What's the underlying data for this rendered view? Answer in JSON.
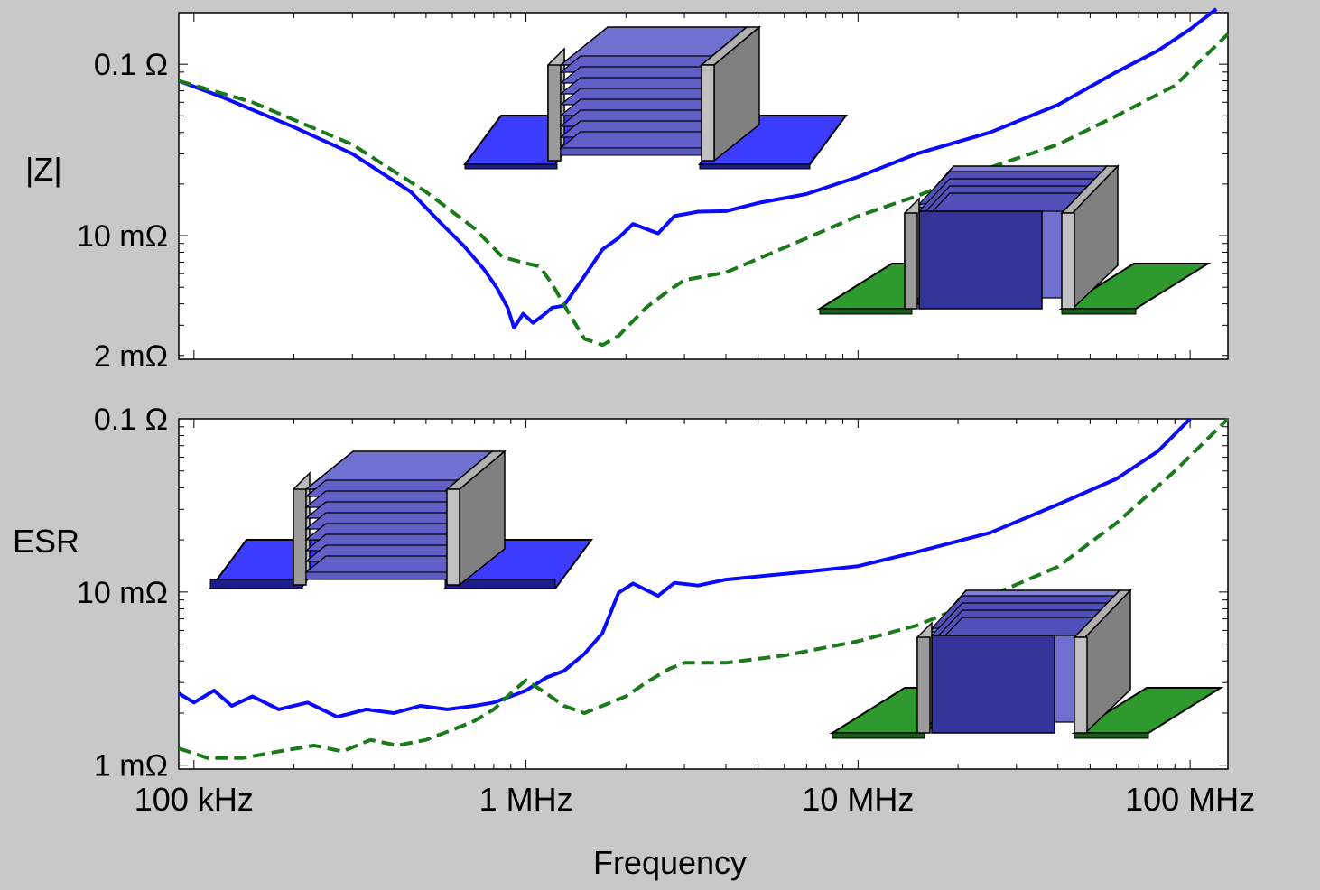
{
  "chart_data": [
    {
      "type": "line",
      "ylabel": "|Z|",
      "x_scale": "log",
      "y_scale": "log",
      "xlim": [
        90000,
        130000000
      ],
      "ylim": [
        0.0019,
        0.2
      ],
      "y_ticks": [
        {
          "value": 0.1,
          "label": "0.1 Ω"
        },
        {
          "value": 0.01,
          "label": "10 mΩ"
        },
        {
          "value": 0.002,
          "label": "2 mΩ"
        }
      ],
      "series": [
        {
          "color": "#0a0aff",
          "dash": "solid",
          "x": [
            90000,
            120000,
            200000,
            300000,
            450000,
            550000,
            650000,
            750000,
            820000,
            880000,
            920000,
            980000,
            1050000,
            1120000,
            1200000,
            1300000,
            1500000,
            1700000,
            1900000,
            2100000,
            2500000,
            2800000,
            3300000,
            4000000,
            5000000,
            7000000,
            10000000,
            15000000,
            25000000,
            40000000,
            60000000,
            80000000,
            100000000,
            120000000
          ],
          "y": [
            0.08,
            0.065,
            0.043,
            0.03,
            0.018,
            0.012,
            0.0087,
            0.0063,
            0.0049,
            0.0038,
            0.0029,
            0.0035,
            0.0031,
            0.0034,
            0.0038,
            0.0039,
            0.0058,
            0.0083,
            0.0097,
            0.0117,
            0.0103,
            0.013,
            0.0138,
            0.0139,
            0.0155,
            0.0175,
            0.022,
            0.03,
            0.04,
            0.058,
            0.09,
            0.12,
            0.16,
            0.21
          ]
        },
        {
          "color": "#1a7a1a",
          "dash": "dashed",
          "x": [
            90000,
            150000,
            300000,
            500000,
            700000,
            850000,
            1000000,
            1100000,
            1200000,
            1350000,
            1500000,
            1700000,
            1900000,
            2300000,
            2700000,
            3000000,
            4000000,
            6000000,
            10000000,
            15000000,
            25000000,
            40000000,
            60000000,
            90000000,
            130000000
          ],
          "y": [
            0.08,
            0.06,
            0.034,
            0.018,
            0.011,
            0.0075,
            0.0069,
            0.0066,
            0.0052,
            0.0035,
            0.0025,
            0.0023,
            0.0026,
            0.0038,
            0.0048,
            0.0055,
            0.0061,
            0.0085,
            0.013,
            0.017,
            0.025,
            0.034,
            0.05,
            0.075,
            0.15
          ]
        }
      ]
    },
    {
      "type": "line",
      "ylabel": "ESR",
      "xlabel": "Frequency",
      "x_scale": "log",
      "y_scale": "log",
      "xlim": [
        90000,
        130000000
      ],
      "ylim": [
        0.00095,
        0.1
      ],
      "y_ticks": [
        {
          "value": 0.1,
          "label": "0.1 Ω"
        },
        {
          "value": 0.01,
          "label": "10 mΩ"
        },
        {
          "value": 0.001,
          "label": "1 mΩ"
        }
      ],
      "x_ticks": [
        {
          "value": 100000,
          "label": "100 kHz"
        },
        {
          "value": 1000000,
          "label": "1 MHz"
        },
        {
          "value": 10000000,
          "label": "10 MHz"
        },
        {
          "value": 100000000,
          "label": "100 MHz"
        }
      ],
      "series": [
        {
          "color": "#0a0aff",
          "dash": "solid",
          "x": [
            90000,
            100000,
            115000,
            130000,
            150000,
            180000,
            220000,
            270000,
            330000,
            400000,
            480000,
            580000,
            700000,
            800000,
            900000,
            1000000,
            1150000,
            1300000,
            1500000,
            1700000,
            1900000,
            2100000,
            2500000,
            2800000,
            3300000,
            4000000,
            5000000,
            7000000,
            10000000,
            15000000,
            25000000,
            40000000,
            60000000,
            80000000,
            100000000
          ],
          "y": [
            0.0026,
            0.0023,
            0.0027,
            0.0022,
            0.0025,
            0.0021,
            0.0023,
            0.0019,
            0.0021,
            0.002,
            0.0022,
            0.0021,
            0.0022,
            0.0023,
            0.0025,
            0.0027,
            0.0032,
            0.0035,
            0.0044,
            0.0058,
            0.0099,
            0.0112,
            0.0095,
            0.0113,
            0.0109,
            0.0118,
            0.0123,
            0.0131,
            0.0141,
            0.017,
            0.022,
            0.032,
            0.045,
            0.065,
            0.1
          ]
        },
        {
          "color": "#1a7a1a",
          "dash": "dashed",
          "x": [
            90000,
            110000,
            140000,
            180000,
            230000,
            280000,
            340000,
            410000,
            500000,
            600000,
            700000,
            800000,
            900000,
            1000000,
            1150000,
            1300000,
            1500000,
            1700000,
            2000000,
            2300000,
            2700000,
            3000000,
            4000000,
            6000000,
            10000000,
            15000000,
            25000000,
            40000000,
            60000000,
            90000000,
            130000000
          ],
          "y": [
            0.00125,
            0.0011,
            0.0011,
            0.0012,
            0.0013,
            0.0012,
            0.0014,
            0.0013,
            0.0014,
            0.0016,
            0.0018,
            0.0021,
            0.0026,
            0.0031,
            0.0026,
            0.0022,
            0.002,
            0.0022,
            0.0025,
            0.003,
            0.0036,
            0.0039,
            0.0039,
            0.0043,
            0.0052,
            0.0064,
            0.0095,
            0.014,
            0.025,
            0.05,
            0.1
          ]
        }
      ]
    }
  ],
  "colors": {
    "background": "#c8c8c8",
    "plot_bg": "#ffffff",
    "blue_pad": "#3c3cff",
    "green_pad": "#2e9a2e",
    "cap_blue": "#7070d0",
    "cap_dark_blue": "#33339a",
    "terminal_gray": "#8a8a8a"
  },
  "icons": [
    "mlcc-standard-icon",
    "mlcc-rotated-icon"
  ]
}
